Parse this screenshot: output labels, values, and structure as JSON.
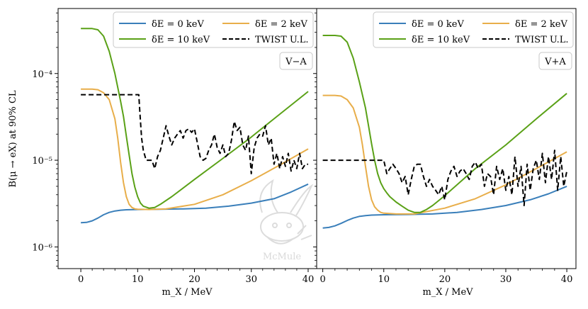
{
  "chart_data": [
    {
      "type": "line",
      "panel_label": "V−A",
      "xlabel": "m_X / MeV",
      "ylabel": "B(μ → eX) at 90% CL",
      "xlim": [
        -4,
        41.5
      ],
      "ylim_log10": [
        -6.25,
        -3.25
      ],
      "xticks": [
        0,
        10,
        20,
        30,
        40
      ],
      "xtick_labels": [
        "0",
        "10",
        "20",
        "30",
        "40"
      ],
      "yticks_log10": [
        -6,
        -5,
        -4
      ],
      "ytick_labels": [
        "10⁻⁶",
        "10⁻⁵",
        "10⁻⁴"
      ],
      "series": [
        {
          "name": "δE = 0 keV",
          "color": "#3a7fba",
          "dash": "",
          "x": [
            0,
            1,
            2,
            3,
            4,
            5,
            6,
            7,
            8,
            10,
            14,
            18,
            22,
            26,
            30,
            34,
            37,
            40
          ],
          "y": [
            1.9e-06,
            1.92e-06,
            2e-06,
            2.15e-06,
            2.35e-06,
            2.5e-06,
            2.6e-06,
            2.65e-06,
            2.68e-06,
            2.7e-06,
            2.72e-06,
            2.75e-06,
            2.8e-06,
            2.95e-06,
            3.2e-06,
            3.6e-06,
            4.3e-06,
            5.3e-06
          ]
        },
        {
          "name": "δE = 2 keV",
          "color": "#e8ae4a",
          "dash": "",
          "x": [
            0,
            2,
            3,
            4,
            5,
            6,
            6.5,
            7,
            7.5,
            8,
            8.5,
            9,
            9.5,
            10,
            12,
            15,
            20,
            25,
            30,
            35,
            40
          ],
          "y": [
            6.6e-05,
            6.6e-05,
            6.5e-05,
            6e-05,
            5e-05,
            3e-05,
            1.8e-05,
            9.5e-06,
            5.5e-06,
            3.8e-06,
            3.1e-06,
            2.85e-06,
            2.75e-06,
            2.72e-06,
            2.7e-06,
            2.75e-06,
            3.1e-06,
            4e-06,
            5.8e-06,
            8.8e-06,
            1.35e-05
          ]
        },
        {
          "name": "δE = 10 keV",
          "color": "#5aa117",
          "dash": "",
          "x": [
            0,
            2,
            3,
            4,
            5,
            6,
            7,
            7.5,
            8,
            8.5,
            9,
            9.5,
            10,
            10.5,
            11,
            12,
            13,
            14,
            16,
            20,
            25,
            30,
            35,
            40
          ],
          "y": [
            0.00033,
            0.00033,
            0.00032,
            0.00027,
            0.00018,
            0.0001,
            4.8e-05,
            3.2e-05,
            1.9e-05,
            1.15e-05,
            7e-06,
            4.9e-06,
            3.8e-06,
            3.2e-06,
            2.95e-06,
            2.8e-06,
            2.85e-06,
            3.1e-06,
            3.8e-06,
            6e-06,
            1.05e-05,
            1.85e-05,
            3.4e-05,
            6.2e-05
          ]
        },
        {
          "name": "TWIST U.L.",
          "color": "#000000",
          "dash": "7,4",
          "x": [
            0,
            10.2,
            10.4,
            10.7,
            11,
            11.5,
            12,
            12.5,
            13,
            13.5,
            14,
            14.5,
            15,
            15.5,
            16,
            16.5,
            17,
            17.5,
            18,
            18.5,
            19,
            19.5,
            20,
            20.5,
            21,
            21.5,
            22,
            22.5,
            23,
            23.5,
            24,
            24.5,
            25,
            25.5,
            26,
            26.5,
            27,
            27.5,
            28,
            28.5,
            29,
            29.5,
            30,
            30.5,
            31,
            31.5,
            32,
            32.5,
            33,
            33.5,
            34,
            34.5,
            35,
            35.5,
            36,
            36.5,
            37,
            37.5,
            38,
            38.5,
            39,
            39.5,
            40
          ],
          "y": [
            5.7e-05,
            5.7e-05,
            3.5e-05,
            1.8e-05,
            1.3e-05,
            1e-05,
            1e-05,
            1e-05,
            8e-06,
            1.1e-05,
            1.3e-05,
            1.8e-05,
            2.5e-05,
            1.9e-05,
            1.5e-05,
            1.8e-05,
            2e-05,
            2.2e-05,
            1.8e-05,
            2.2e-05,
            2.3e-05,
            2.1e-05,
            2.3e-05,
            1.6e-05,
            1.1e-05,
            1e-05,
            1.05e-05,
            1.3e-05,
            1.5e-05,
            2e-05,
            1.4e-05,
            1.2e-05,
            1.5e-05,
            1.1e-05,
            1.2e-05,
            1.7e-05,
            2.8e-05,
            2.2e-05,
            2.4e-05,
            1.5e-05,
            1.3e-05,
            1.9e-05,
            7e-06,
            1.4e-05,
            1.8e-05,
            2e-05,
            1.9e-05,
            2.5e-05,
            1.5e-05,
            1.8e-05,
            9e-06,
            1.2e-05,
            8e-06,
            1.1e-05,
            8.5e-06,
            1.2e-05,
            7.5e-06,
            1e-05,
            8e-06,
            1.2e-05,
            8e-06,
            9e-06,
            9e-06
          ]
        }
      ]
    },
    {
      "type": "line",
      "panel_label": "V+A",
      "xlabel": "m_X / MeV",
      "ylabel": "",
      "xlim": [
        -1,
        41.5
      ],
      "ylim_log10": [
        -6.25,
        -3.25
      ],
      "xticks": [
        0,
        10,
        20,
        30,
        40
      ],
      "xtick_labels": [
        "0",
        "10",
        "20",
        "30",
        "40"
      ],
      "yticks_log10": [
        -6,
        -5,
        -4
      ],
      "ytick_labels": [
        "",
        "",
        ""
      ],
      "series": [
        {
          "name": "δE = 0 keV",
          "color": "#3a7fba",
          "dash": "",
          "x": [
            0,
            1,
            2,
            3,
            4,
            5,
            6,
            7,
            8,
            10,
            14,
            18,
            22,
            26,
            30,
            34,
            37,
            40
          ],
          "y": [
            1.65e-06,
            1.68e-06,
            1.75e-06,
            1.87e-06,
            2.02e-06,
            2.15e-06,
            2.25e-06,
            2.3e-06,
            2.33e-06,
            2.35e-06,
            2.37e-06,
            2.4e-06,
            2.5e-06,
            2.7e-06,
            3e-06,
            3.5e-06,
            4.1e-06,
            5e-06
          ]
        },
        {
          "name": "δE = 2 keV",
          "color": "#e8ae4a",
          "dash": "",
          "x": [
            0,
            2,
            3,
            4,
            5,
            6,
            6.5,
            7,
            7.5,
            8,
            8.5,
            9,
            9.5,
            10,
            12,
            15,
            20,
            25,
            30,
            35,
            40
          ],
          "y": [
            5.6e-05,
            5.6e-05,
            5.5e-05,
            5e-05,
            4e-05,
            2.4e-05,
            1.5e-05,
            8.5e-06,
            5e-06,
            3.5e-06,
            2.9e-06,
            2.65e-06,
            2.5e-06,
            2.45e-06,
            2.4e-06,
            2.4e-06,
            2.8e-06,
            3.6e-06,
            5.2e-06,
            8e-06,
            1.25e-05
          ]
        },
        {
          "name": "δE = 10 keV",
          "color": "#5aa117",
          "dash": "",
          "x": [
            0,
            2,
            3,
            4,
            5,
            6,
            7,
            7.5,
            8,
            8.5,
            9,
            9.5,
            10,
            10.5,
            11,
            12,
            13,
            14,
            15,
            16,
            17,
            18,
            20,
            25,
            30,
            35,
            40
          ],
          "y": [
            0.000275,
            0.000275,
            0.00027,
            0.00023,
            0.00015,
            8e-05,
            4e-05,
            2.5e-05,
            1.55e-05,
            1e-05,
            7e-06,
            5.5e-06,
            4.7e-06,
            4.2e-06,
            3.8e-06,
            3.3e-06,
            2.95e-06,
            2.65e-06,
            2.5e-06,
            2.5e-06,
            2.7e-06,
            3e-06,
            3.9e-06,
            8e-06,
            1.5e-05,
            3e-05,
            5.9e-05
          ]
        },
        {
          "name": "TWIST U.L.",
          "color": "#000000",
          "dash": "7,4",
          "x": [
            0,
            10,
            10.5,
            11,
            11.5,
            12,
            12.5,
            13,
            13.5,
            14,
            14.5,
            15,
            15.5,
            16,
            16.5,
            17,
            17.5,
            18,
            18.5,
            19,
            19.5,
            20,
            20.5,
            21,
            21.5,
            22,
            22.5,
            23,
            23.5,
            24,
            24.5,
            25,
            25.5,
            26,
            26.5,
            27,
            27.5,
            28,
            28.5,
            29,
            29.5,
            30,
            30.5,
            31,
            31.5,
            32,
            32.5,
            33,
            33.5,
            34,
            34.5,
            35,
            35.5,
            36,
            36.5,
            37,
            37.5,
            38,
            38.5,
            39,
            39.5,
            40
          ],
          "y": [
            1e-05,
            1e-05,
            7e-06,
            8e-06,
            9e-06,
            8e-06,
            7e-06,
            5.5e-06,
            6.5e-06,
            4e-06,
            6e-06,
            8.5e-06,
            9e-06,
            9e-06,
            6.5e-06,
            5e-06,
            6e-06,
            5e-06,
            4.5e-06,
            4e-06,
            5e-06,
            3.5e-06,
            6e-06,
            7.5e-06,
            8.5e-06,
            6.5e-06,
            7.5e-06,
            8e-06,
            7e-06,
            6e-06,
            8.5e-06,
            9.5e-06,
            8e-06,
            9e-06,
            5e-06,
            7e-06,
            6.5e-06,
            4e-06,
            8.5e-06,
            6e-06,
            8e-06,
            4.5e-06,
            6.5e-06,
            4e-06,
            1.1e-05,
            5e-06,
            8.5e-06,
            3e-06,
            9e-06,
            4.5e-06,
            8e-06,
            1e-05,
            6e-06,
            1.2e-05,
            5.5e-06,
            1.1e-05,
            6e-06,
            1.3e-05,
            4.5e-06,
            1.1e-05,
            5e-06,
            7.5e-06
          ]
        }
      ]
    }
  ],
  "legend": {
    "entries": [
      "δE = 0 keV",
      "δE = 2 keV",
      "δE = 10 keV",
      "TWIST U.L."
    ],
    "placement": "top"
  },
  "watermark": {
    "text": "McMule"
  }
}
